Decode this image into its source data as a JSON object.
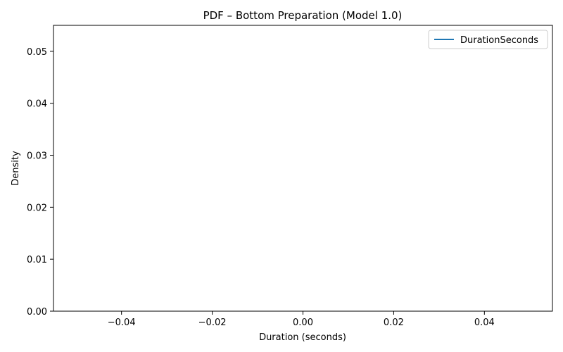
{
  "chart_data": {
    "type": "line",
    "title": "PDF – Bottom Preparation (Model 1.0)",
    "xlabel": "Duration (seconds)",
    "ylabel": "Density",
    "xlim": [
      -0.055,
      0.055
    ],
    "ylim": [
      0,
      0.055
    ],
    "xticks": [
      -0.04,
      -0.02,
      0.0,
      0.02,
      0.04
    ],
    "xtick_labels": [
      "−0.04",
      "−0.02",
      "0.00",
      "0.02",
      "0.04"
    ],
    "yticks": [
      0.0,
      0.01,
      0.02,
      0.03,
      0.04,
      0.05
    ],
    "ytick_labels": [
      "0.00",
      "0.01",
      "0.02",
      "0.03",
      "0.04",
      "0.05"
    ],
    "grid": false,
    "legend_position": "top-right",
    "series": [
      {
        "name": "DurationSeconds",
        "color": "#1f77b4",
        "x": [],
        "y": []
      }
    ]
  }
}
